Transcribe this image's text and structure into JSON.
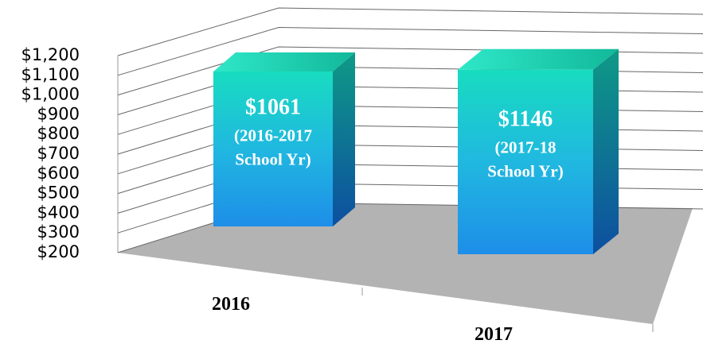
{
  "chart_data": {
    "type": "bar3d",
    "categories": [
      "2016",
      "2017"
    ],
    "values": [
      1061,
      1146
    ],
    "value_labels": [
      "$1061",
      "$1146"
    ],
    "bar_notes": [
      [
        "(2016-2017",
        "School Yr)"
      ],
      [
        "(2017-18",
        "School Yr)"
      ]
    ],
    "ylim": [
      200,
      1200
    ],
    "yticks": [
      {
        "value": 200,
        "label": "$200"
      },
      {
        "value": 300,
        "label": "$300"
      },
      {
        "value": 400,
        "label": "$400"
      },
      {
        "value": 500,
        "label": "$500"
      },
      {
        "value": 600,
        "label": "$600"
      },
      {
        "value": 700,
        "label": "$700"
      },
      {
        "value": 800,
        "label": "$800"
      },
      {
        "value": 900,
        "label": "$900"
      },
      {
        "value": 1000,
        "label": "$1,000"
      },
      {
        "value": 1100,
        "label": "$1,100"
      },
      {
        "value": 1200,
        "label": "$1,200"
      }
    ],
    "grid": true
  }
}
